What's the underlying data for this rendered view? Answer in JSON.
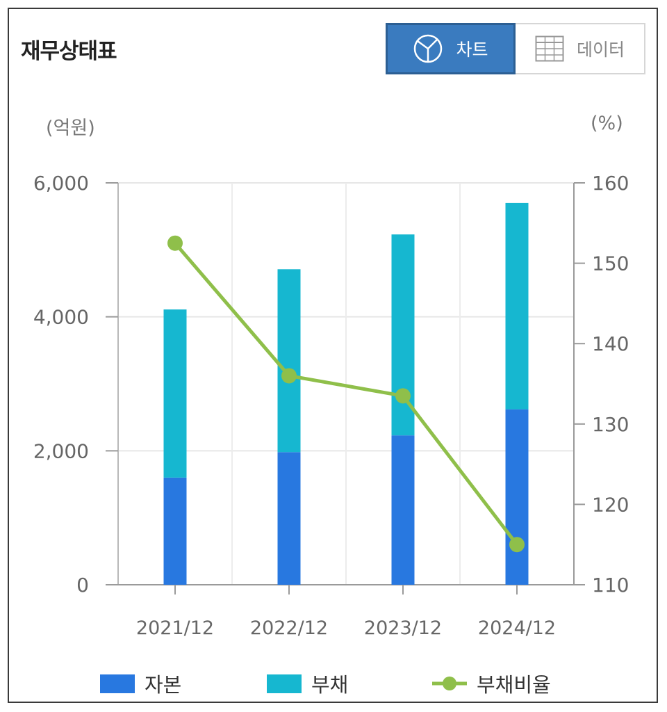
{
  "header": {
    "title": "재무상태표",
    "tabs": [
      {
        "label": "차트",
        "icon": "pie-chart-icon",
        "active": true
      },
      {
        "label": "데이터",
        "icon": "table-grid-icon",
        "active": false
      }
    ]
  },
  "colors": {
    "equity": "#2878e0",
    "liabilities": "#16b7d0",
    "ratio": "#8fbf4a",
    "tab_active": "#3a7bbf"
  },
  "chart_data": {
    "type": "bar",
    "stacked": true,
    "categories": [
      "2021/12",
      "2022/12",
      "2023/12",
      "2024/12"
    ],
    "series": [
      {
        "name": "자본",
        "type": "bar",
        "axis": "left",
        "values": [
          1600,
          1980,
          2230,
          2620
        ]
      },
      {
        "name": "부채",
        "type": "bar",
        "axis": "left",
        "values": [
          2510,
          2730,
          3000,
          3080
        ]
      },
      {
        "name": "부채비율",
        "type": "line",
        "axis": "right",
        "values": [
          152.5,
          136,
          133.5,
          115
        ]
      }
    ],
    "y_left": {
      "unit": "(억원)",
      "ylim": [
        0,
        6000
      ],
      "ticks": [
        "0",
        "2,000",
        "4,000",
        "6,000"
      ],
      "tick_values": [
        0,
        2000,
        4000,
        6000
      ]
    },
    "y_right": {
      "unit": "(%)",
      "ylim": [
        110,
        160
      ],
      "ticks": [
        "110",
        "120",
        "130",
        "140",
        "150",
        "160"
      ],
      "tick_values": [
        110,
        120,
        130,
        140,
        150,
        160
      ]
    },
    "grid": true,
    "legend_position": "bottom"
  }
}
